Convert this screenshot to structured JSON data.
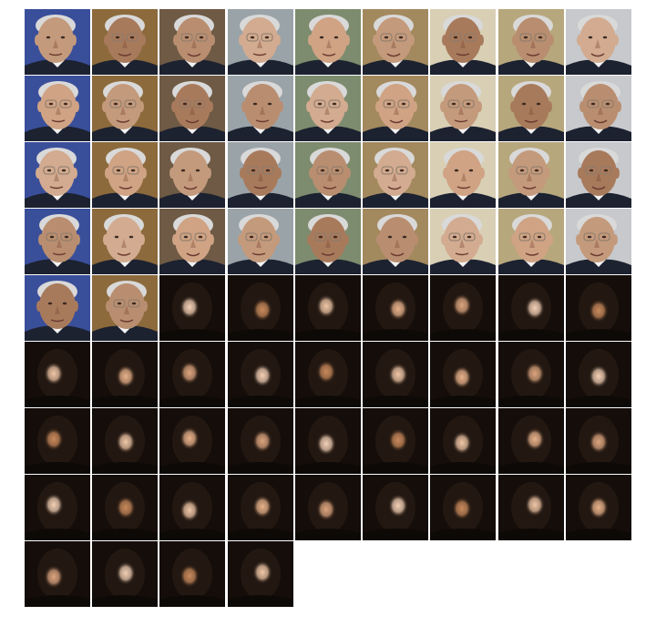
{
  "grid": {
    "columns": 9,
    "total_tiles": 76,
    "photo_tiles": 38,
    "masked_tiles": 38
  },
  "palette": {
    "photo_backgrounds": [
      "#3a4f9a",
      "#8c6a3c",
      "#6e5a45",
      "#9aa3a8",
      "#7d8c6e",
      "#a3895e",
      "#d8cfb5",
      "#b7a77d",
      "#c7c9cc"
    ],
    "skin_tones": [
      "#c49a7c",
      "#b98e70",
      "#cfa384",
      "#a87a5c",
      "#d2ab90"
    ],
    "suit_color": "#1c2230",
    "shirt_color": "#f2f2f2",
    "hair_color": "#d9d9d9",
    "masked_background": "#140d09",
    "masked_face_shadow": "#231811",
    "masked_glow": [
      "#f0c7a7",
      "#e8b28b",
      "#dca57f",
      "#f3d0b6",
      "#c98a5c"
    ]
  }
}
